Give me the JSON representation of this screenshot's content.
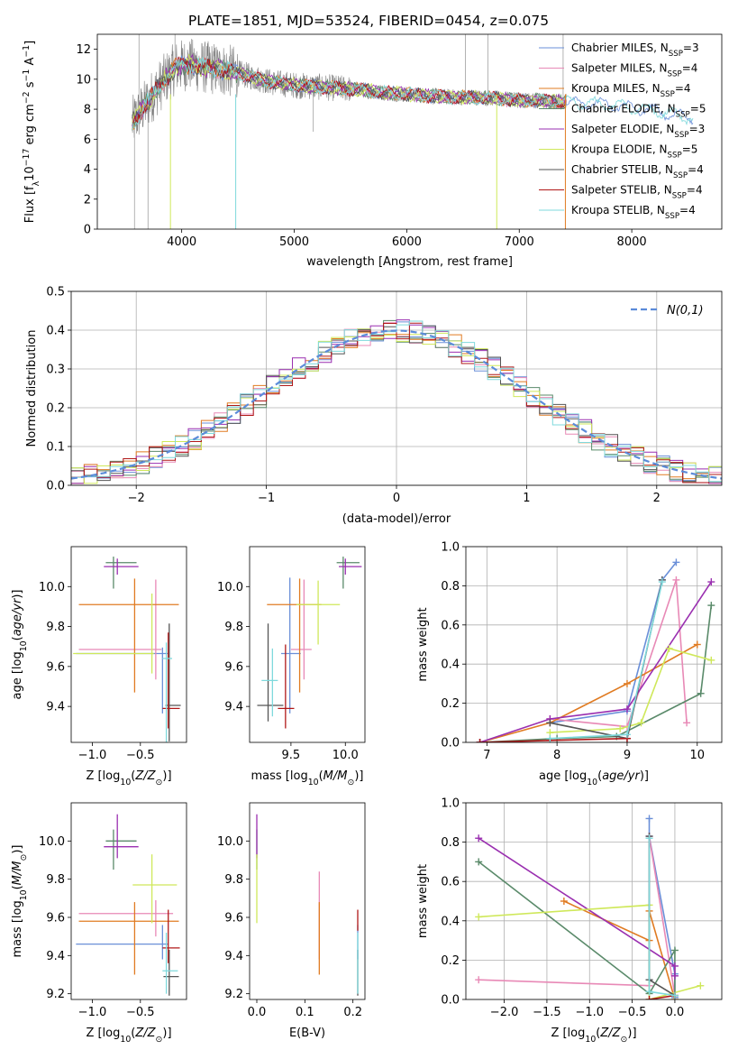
{
  "figure_title": "PLATE=1851, MJD=53524, FIBERID=0454, z=0.075",
  "colors": {
    "chabrier_miles": "#6a8fd8",
    "salpeter_miles": "#e889b6",
    "kroupa_miles": "#e07b22",
    "chabrier_elodie": "#5a8a6a",
    "salpeter_elodie": "#9a2fb0",
    "kroupa_elodie": "#cfe85a",
    "chabrier_stelib": "#555555",
    "salpeter_stelib": "#b01818",
    "kroupa_stelib": "#7fd9dc",
    "normal_curve": "#5b8bd9",
    "grid": "#b0b0b0"
  },
  "chart_data": [
    {
      "id": "spectrum",
      "type": "line",
      "xlabel": "wavelength [Angstrom, rest frame]",
      "ylabel": "Flux [f_λ10^-17 erg cm^-2 s^-1 A^-1]",
      "xlim": [
        3250,
        8800
      ],
      "ylim": [
        0,
        13
      ],
      "xticks": [
        4000,
        5000,
        6000,
        7000,
        8000
      ],
      "yticks": [
        0,
        2,
        4,
        6,
        8,
        10,
        12
      ],
      "grid": false,
      "legend_position": "upper-right",
      "legend": [
        {
          "model": "Chabrier MILES",
          "nssp": "3",
          "color_key": "chabrier_miles"
        },
        {
          "model": "Salpeter MILES",
          "nssp": "4",
          "color_key": "salpeter_miles"
        },
        {
          "model": "Kroupa MILES",
          "nssp": "4",
          "color_key": "kroupa_miles"
        },
        {
          "model": "Chabrier ELODIE",
          "nssp": "5",
          "color_key": "chabrier_elodie"
        },
        {
          "model": "Salpeter ELODIE",
          "nssp": "3",
          "color_key": "salpeter_elodie"
        },
        {
          "model": "Kroupa ELODIE",
          "nssp": "5",
          "color_key": "kroupa_elodie"
        },
        {
          "model": "Chabrier STELIB",
          "nssp": "4",
          "color_key": "chabrier_stelib"
        },
        {
          "model": "Salpeter STELIB",
          "nssp": "4",
          "color_key": "salpeter_stelib"
        },
        {
          "model": "Kroupa STELIB",
          "nssp": "4",
          "color_key": "kroupa_stelib"
        }
      ],
      "continuum": {
        "x": [
          3550,
          3650,
          3750,
          3850,
          3950,
          4050,
          4200,
          4400,
          4600,
          4800,
          5000,
          5200,
          5400,
          5600,
          5800,
          6000,
          6200,
          6400,
          6600,
          6800,
          7000,
          7200,
          7400
        ],
        "y": [
          7.0,
          8.0,
          9.0,
          10.0,
          10.8,
          11.0,
          10.8,
          10.6,
          10.2,
          9.8,
          9.6,
          9.5,
          9.4,
          9.3,
          9.1,
          9.0,
          8.9,
          8.8,
          8.8,
          8.7,
          8.6,
          8.6,
          8.5
        ]
      },
      "model_continuum": {
        "x": [
          7400,
          7600,
          7800,
          8000,
          8200,
          8400,
          8550
        ],
        "y": [
          8.5,
          8.4,
          8.3,
          8.1,
          7.9,
          7.6,
          7.4
        ]
      }
    },
    {
      "id": "residuals",
      "type": "step",
      "xlabel": "(data-model)/error",
      "ylabel": "Normed distribution",
      "xlim": [
        -2.5,
        2.5
      ],
      "ylim": [
        0,
        0.5
      ],
      "xticks": [
        -2,
        -1,
        0,
        1,
        2
      ],
      "yticks": [
        0.0,
        0.1,
        0.2,
        0.3,
        0.4,
        0.5
      ],
      "grid": true,
      "legend_position": "upper-right",
      "normal_label": "N(0,1)",
      "bin_edges_start": -2.5,
      "bin_width": 0.1
    },
    {
      "id": "age_vs_Z",
      "type": "errorbar",
      "xlabel": "Z [log10(Z/Z⊙)]",
      "ylabel": "age [log10(age/yr)]",
      "xlim": [
        -1.22,
        -0.02
      ],
      "ylim": [
        9.22,
        10.2
      ],
      "xticks": [
        -1.0,
        -0.5
      ],
      "yticks": [
        9.4,
        9.6,
        9.8,
        10.0
      ],
      "series": [
        {
          "color_key": "chabrier_miles",
          "x": -0.27,
          "xerr": [
            0.9,
            0.06
          ],
          "y": 9.665,
          "yerr": [
            0.3,
            0.03
          ]
        },
        {
          "color_key": "salpeter_miles",
          "x": -0.34,
          "xerr": [
            0.8,
            0.06
          ],
          "y": 9.685,
          "yerr": [
            0.15,
            0.35
          ]
        },
        {
          "color_key": "kroupa_miles",
          "x": -0.56,
          "xerr": [
            0.58,
            0.46
          ],
          "y": 9.91,
          "yerr": [
            0.44,
            0.13
          ]
        },
        {
          "color_key": "chabrier_elodie",
          "x": -0.78,
          "xerr": [
            0.08,
            0.24
          ],
          "y": 10.12,
          "yerr": [
            0.13,
            0.03
          ]
        },
        {
          "color_key": "salpeter_elodie",
          "x": -0.74,
          "xerr": [
            0.14,
            0.22
          ],
          "y": 10.1,
          "yerr": [
            0.04,
            0.04
          ]
        },
        {
          "color_key": "kroupa_elodie",
          "x": -0.38,
          "xerr": [
            0.82,
            0.02
          ],
          "y": 9.665,
          "yerr": [
            0.1,
            0.3
          ]
        },
        {
          "color_key": "chabrier_stelib",
          "x": -0.2,
          "xerr": [
            0.04,
            0.12
          ],
          "y": 9.405,
          "yerr": [
            0.18,
            0.41
          ]
        },
        {
          "color_key": "salpeter_stelib",
          "x": -0.21,
          "xerr": [
            0.06,
            0.12
          ],
          "y": 9.39,
          "yerr": [
            0.1,
            0.38
          ]
        },
        {
          "color_key": "kroupa_stelib",
          "x": -0.23,
          "xerr": [
            0.04,
            0.06
          ],
          "y": 9.64,
          "yerr": [
            0.45,
            0.08
          ]
        }
      ]
    },
    {
      "id": "age_vs_mass",
      "type": "errorbar",
      "xlabel": "mass [log10(M/M⊙)]",
      "ylabel": "",
      "xlim": [
        9.12,
        10.18
      ],
      "ylim": [
        9.22,
        10.2
      ],
      "xticks": [
        9.5,
        10.0
      ],
      "yticks": [
        9.4,
        9.6,
        9.8,
        10.0
      ],
      "series": [
        {
          "color_key": "chabrier_miles",
          "x": 9.49,
          "xerr": [
            0.08,
            0.1
          ],
          "y": 9.665,
          "yerr": [
            0.3,
            0.38
          ]
        },
        {
          "color_key": "salpeter_miles",
          "x": 9.62,
          "xerr": [
            0.12,
            0.07
          ],
          "y": 9.685,
          "yerr": [
            0.15,
            0.35
          ]
        },
        {
          "color_key": "kroupa_miles",
          "x": 9.58,
          "xerr": [
            0.3,
            0.2
          ],
          "y": 9.91,
          "yerr": [
            0.44,
            0.13
          ]
        },
        {
          "color_key": "chabrier_elodie",
          "x": 9.98,
          "xerr": [
            0.06,
            0.15
          ],
          "y": 10.12,
          "yerr": [
            0.13,
            0.03
          ]
        },
        {
          "color_key": "salpeter_elodie",
          "x": 10.0,
          "xerr": [
            0.06,
            0.15
          ],
          "y": 10.1,
          "yerr": [
            0.04,
            0.04
          ]
        },
        {
          "color_key": "kroupa_elodie",
          "x": 9.75,
          "xerr": [
            0.2,
            0.2
          ],
          "y": 9.91,
          "yerr": [
            0.2,
            0.12
          ]
        },
        {
          "color_key": "chabrier_stelib",
          "x": 9.29,
          "xerr": [
            0.1,
            0.14
          ],
          "y": 9.405,
          "yerr": [
            0.08,
            0.41
          ]
        },
        {
          "color_key": "salpeter_stelib",
          "x": 9.45,
          "xerr": [
            0.07,
            0.08
          ],
          "y": 9.39,
          "yerr": [
            0.1,
            0.32
          ]
        },
        {
          "color_key": "kroupa_stelib",
          "x": 9.33,
          "xerr": [
            0.1,
            0.05
          ],
          "y": 9.53,
          "yerr": [
            0.18,
            0.16
          ]
        }
      ]
    },
    {
      "id": "weight_vs_age",
      "type": "line",
      "xlabel": "age [log10(age/yr)]",
      "ylabel": "mass weight",
      "xlim": [
        6.7,
        10.35
      ],
      "ylim": [
        0,
        1.0
      ],
      "xticks": [
        7,
        8,
        9,
        10
      ],
      "yticks": [
        0.0,
        0.2,
        0.4,
        0.6,
        0.8,
        1.0
      ],
      "grid": true,
      "series": [
        {
          "color_key": "chabrier_miles",
          "x": [
            7.9,
            9.0,
            9.5,
            9.7
          ],
          "y": [
            0.1,
            0.16,
            0.83,
            0.92
          ]
        },
        {
          "color_key": "salpeter_miles",
          "x": [
            7.9,
            9.0,
            9.7,
            9.85
          ],
          "y": [
            0.12,
            0.08,
            0.83,
            0.1
          ]
        },
        {
          "color_key": "kroupa_miles",
          "x": [
            6.9,
            7.9,
            9.0,
            10.0
          ],
          "y": [
            0.0,
            0.1,
            0.3,
            0.5
          ]
        },
        {
          "color_key": "chabrier_elodie",
          "x": [
            6.9,
            8.0,
            8.85,
            10.05,
            10.2
          ],
          "y": [
            0.0,
            0.02,
            0.03,
            0.25,
            0.7
          ]
        },
        {
          "color_key": "salpeter_elodie",
          "x": [
            6.9,
            7.9,
            9.0,
            10.2
          ],
          "y": [
            0.0,
            0.12,
            0.17,
            0.82
          ]
        },
        {
          "color_key": "kroupa_elodie",
          "x": [
            7.9,
            8.9,
            9.2,
            9.6,
            10.2
          ],
          "y": [
            0.05,
            0.07,
            0.1,
            0.48,
            0.42
          ]
        },
        {
          "color_key": "chabrier_stelib",
          "x": [
            7.9,
            9.0,
            9.5
          ],
          "y": [
            0.1,
            0.02,
            0.83
          ]
        },
        {
          "color_key": "salpeter_stelib",
          "x": [
            6.9,
            7.9,
            9.0
          ],
          "y": [
            0.0,
            0.01,
            0.02
          ]
        },
        {
          "color_key": "kroupa_stelib",
          "x": [
            7.9,
            9.0,
            9.5
          ],
          "y": [
            0.02,
            0.04,
            0.82
          ]
        }
      ]
    },
    {
      "id": "mass_vs_Z",
      "type": "errorbar",
      "xlabel": "Z [log10(Z/Z⊙)]",
      "ylabel": "mass [log10(M/M⊙)]",
      "xlim": [
        -1.22,
        -0.02
      ],
      "ylim": [
        9.17,
        10.2
      ],
      "xticks": [
        -1.0,
        -0.5
      ],
      "yticks": [
        9.2,
        9.4,
        9.6,
        9.8,
        10.0
      ],
      "series": [
        {
          "color_key": "chabrier_miles",
          "x": -0.27,
          "xerr": [
            0.9,
            0.06
          ],
          "y": 9.46,
          "yerr": [
            0.08,
            0.1
          ]
        },
        {
          "color_key": "salpeter_miles",
          "x": -0.34,
          "xerr": [
            0.8,
            0.18
          ],
          "y": 9.62,
          "yerr": [
            0.12,
            0.07
          ]
        },
        {
          "color_key": "kroupa_miles",
          "x": -0.56,
          "xerr": [
            0.58,
            0.46
          ],
          "y": 9.58,
          "yerr": [
            0.28,
            0.1
          ]
        },
        {
          "color_key": "chabrier_elodie",
          "x": -0.78,
          "xerr": [
            0.08,
            0.24
          ],
          "y": 10.0,
          "yerr": [
            0.15,
            0.06
          ]
        },
        {
          "color_key": "salpeter_elodie",
          "x": -0.74,
          "xerr": [
            0.14,
            0.22
          ],
          "y": 9.97,
          "yerr": [
            0.06,
            0.17
          ]
        },
        {
          "color_key": "kroupa_elodie",
          "x": -0.38,
          "xerr": [
            0.2,
            0.26
          ],
          "y": 9.77,
          "yerr": [
            0.2,
            0.16
          ]
        },
        {
          "color_key": "chabrier_stelib",
          "x": -0.2,
          "xerr": [
            0.06,
            0.1
          ],
          "y": 9.29,
          "yerr": [
            0.1,
            0.14
          ]
        },
        {
          "color_key": "salpeter_stelib",
          "x": -0.21,
          "xerr": [
            0.06,
            0.12
          ],
          "y": 9.44,
          "yerr": [
            0.08,
            0.2
          ]
        },
        {
          "color_key": "kroupa_stelib",
          "x": -0.23,
          "xerr": [
            0.04,
            0.12
          ],
          "y": 9.32,
          "yerr": [
            0.12,
            0.2
          ]
        }
      ]
    },
    {
      "id": "mass_vs_EBV",
      "type": "errorbar",
      "xlabel": "E(B-V)",
      "ylabel": "",
      "xlim": [
        -0.015,
        0.225
      ],
      "ylim": [
        9.17,
        10.2
      ],
      "xticks": [
        0.0,
        0.1,
        0.2
      ],
      "yticks": [
        9.2,
        9.4,
        9.6,
        9.8,
        10.0
      ],
      "series": [
        {
          "color_key": "chabrier_miles",
          "x": 0.21,
          "y": 9.46,
          "yerr": [
            0.08,
            0.1
          ]
        },
        {
          "color_key": "salpeter_miles",
          "x": 0.13,
          "y": 9.62,
          "yerr": [
            0.24,
            0.22
          ]
        },
        {
          "color_key": "kroupa_miles",
          "x": 0.13,
          "y": 9.58,
          "yerr": [
            0.28,
            0.1
          ]
        },
        {
          "color_key": "chabrier_elodie",
          "x": 0.0,
          "y": 10.0,
          "yerr": [
            0.15,
            0.06
          ]
        },
        {
          "color_key": "salpeter_elodie",
          "x": 0.0,
          "y": 9.97,
          "yerr": [
            0.06,
            0.17
          ]
        },
        {
          "color_key": "kroupa_elodie",
          "x": 0.0,
          "y": 9.77,
          "yerr": [
            0.2,
            0.16
          ]
        },
        {
          "color_key": "chabrier_stelib",
          "x": 0.21,
          "y": 9.29,
          "yerr": [
            0.1,
            0.14
          ]
        },
        {
          "color_key": "salpeter_stelib",
          "x": 0.21,
          "y": 9.58,
          "yerr": [
            0.05,
            0.06
          ]
        },
        {
          "color_key": "kroupa_stelib",
          "x": 0.21,
          "y": 9.32,
          "yerr": [
            0.12,
            0.2
          ]
        }
      ]
    },
    {
      "id": "weight_vs_Z",
      "type": "line",
      "xlabel": "Z [log10(Z/Z⊙)]",
      "ylabel": "mass weight",
      "xlim": [
        -2.45,
        0.55
      ],
      "ylim": [
        0,
        1.0
      ],
      "xticks": [
        -2.0,
        -1.5,
        -1.0,
        -0.5,
        0.0
      ],
      "yticks": [
        0.0,
        0.2,
        0.4,
        0.6,
        0.8,
        1.0
      ],
      "grid": true,
      "series": [
        {
          "color_key": "chabrier_miles",
          "x": [
            -0.3,
            -0.3,
            0.0,
            0.0
          ],
          "y": [
            0.92,
            0.83,
            0.13,
            0.01
          ]
        },
        {
          "color_key": "salpeter_miles",
          "x": [
            -2.3,
            -0.3,
            -0.3,
            0.0
          ],
          "y": [
            0.1,
            0.07,
            0.83,
            0.02
          ]
        },
        {
          "color_key": "kroupa_miles",
          "x": [
            -1.3,
            -0.3,
            -0.3,
            0.0
          ],
          "y": [
            0.5,
            0.3,
            0.45,
            0.0
          ]
        },
        {
          "color_key": "chabrier_elodie",
          "x": [
            -2.3,
            -0.3,
            0.0,
            0.0
          ],
          "y": [
            0.7,
            0.03,
            0.25,
            0.02
          ]
        },
        {
          "color_key": "salpeter_elodie",
          "x": [
            -2.3,
            0.0,
            0.0
          ],
          "y": [
            0.82,
            0.17,
            0.12
          ]
        },
        {
          "color_key": "kroupa_elodie",
          "x": [
            -2.3,
            -0.3,
            -0.3,
            0.3
          ],
          "y": [
            0.42,
            0.48,
            0.0,
            0.07
          ]
        },
        {
          "color_key": "chabrier_stelib",
          "x": [
            -0.3,
            -0.3,
            0.0
          ],
          "y": [
            0.83,
            0.1,
            0.02
          ]
        },
        {
          "color_key": "salpeter_stelib",
          "x": [
            -0.3,
            0.0
          ],
          "y": [
            0.0,
            0.02
          ]
        },
        {
          "color_key": "kroupa_stelib",
          "x": [
            -0.3,
            -0.3,
            0.0
          ],
          "y": [
            0.82,
            0.04,
            0.02
          ]
        }
      ]
    }
  ]
}
